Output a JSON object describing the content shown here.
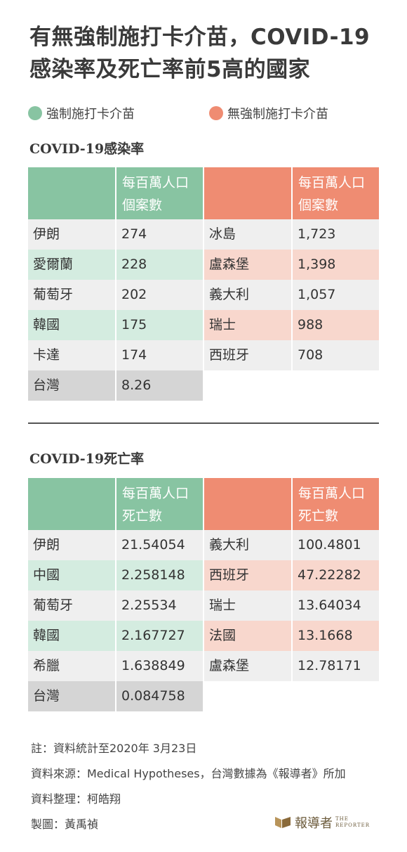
{
  "title": "有無強制施打卡介苗，COVID-19感染率及死亡率前5高的國家",
  "colors": {
    "mandatory": "#88c4a2",
    "mandatory_light": "#d4ece0",
    "non_mandatory": "#ef8c72",
    "non_mandatory_light": "#f8d7cd",
    "gray_light": "#efefef",
    "taiwan": "#d5d5d5"
  },
  "legend": {
    "mandatory": "強制施打卡介苗",
    "non_mandatory": "無強制施打卡介苗"
  },
  "chart_data": [
    {
      "type": "table",
      "title": "COVID-19感染率",
      "left_header": [
        "每百萬人口",
        "個案數"
      ],
      "right_header": [
        "每百萬人口",
        "個案數"
      ],
      "mandatory": [
        {
          "country": "伊朗",
          "value": "274"
        },
        {
          "country": "愛爾蘭",
          "value": "228"
        },
        {
          "country": "葡萄牙",
          "value": "202"
        },
        {
          "country": "韓國",
          "value": "175"
        },
        {
          "country": "卡達",
          "value": "174"
        },
        {
          "country": "台灣",
          "value": "8.26"
        }
      ],
      "non_mandatory": [
        {
          "country": "冰島",
          "value": "1,723"
        },
        {
          "country": "盧森堡",
          "value": "1,398"
        },
        {
          "country": "義大利",
          "value": "1,057"
        },
        {
          "country": "瑞士",
          "value": "988"
        },
        {
          "country": "西班牙",
          "value": "708"
        }
      ]
    },
    {
      "type": "table",
      "title": "COVID-19死亡率",
      "left_header": [
        "每百萬人口",
        "死亡數"
      ],
      "right_header": [
        "每百萬人口",
        "死亡數"
      ],
      "mandatory": [
        {
          "country": "伊朗",
          "value": "21.54054"
        },
        {
          "country": "中國",
          "value": "2.258148"
        },
        {
          "country": "葡萄牙",
          "value": "2.25534"
        },
        {
          "country": "韓國",
          "value": "2.167727"
        },
        {
          "country": "希臘",
          "value": "1.638849"
        },
        {
          "country": "台灣",
          "value": "0.084758"
        }
      ],
      "non_mandatory": [
        {
          "country": "義大利",
          "value": "100.4801"
        },
        {
          "country": "西班牙",
          "value": "47.22282"
        },
        {
          "country": "瑞士",
          "value": "13.64034"
        },
        {
          "country": "法國",
          "value": "13.1668"
        },
        {
          "country": "盧森堡",
          "value": "12.78171"
        }
      ]
    }
  ],
  "notes": {
    "note": "註：資料統計至2020年 3月23日",
    "source": "資料來源：Medical Hypotheses，台灣數據為《報導者》所加",
    "compiled": "資料整理：柯皓翔",
    "graphic": "製圖：黃禹禎"
  },
  "logo": {
    "name": "報導者",
    "sub1": "THE",
    "sub2": "REPORTER"
  }
}
